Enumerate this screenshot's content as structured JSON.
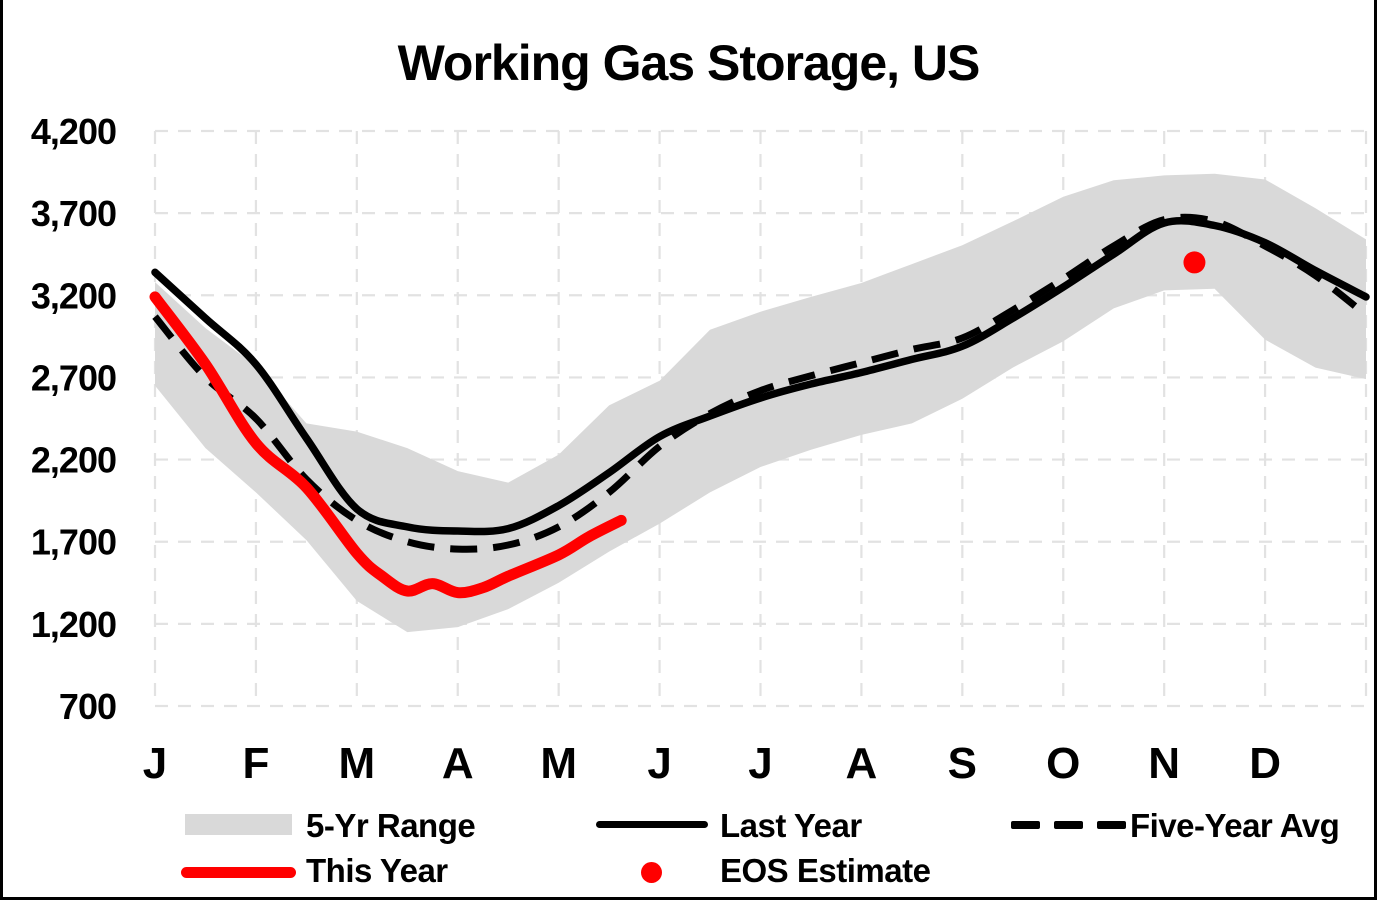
{
  "title": "Working Gas Storage, US",
  "legend": {
    "items": [
      {
        "label": "5-Yr Range",
        "swatch": "gray-band"
      },
      {
        "label": "Last Year",
        "swatch": "black-solid-line"
      },
      {
        "label": "Five-Year Avg",
        "swatch": "black-dashed-line"
      },
      {
        "label": "This Year",
        "swatch": "red-solid-line"
      },
      {
        "label": "EOS Estimate",
        "swatch": "red-dot"
      }
    ]
  },
  "colors": {
    "this_year": "#FF0000",
    "eos_estimate": "#FF0000",
    "last_year": "#000000",
    "five_year_avg": "#000000",
    "range_band": "#D9D9D9",
    "gridline": "#E2E2E2",
    "background": "#FFFFFF"
  },
  "chart_data": {
    "type": "line",
    "title": "Working Gas Storage, US",
    "xlabel": "",
    "ylabel": "",
    "x_categories": [
      "J",
      "F",
      "M",
      "A",
      "M",
      "J",
      "J",
      "A",
      "S",
      "O",
      "N",
      "D"
    ],
    "x_range_months": [
      0,
      12
    ],
    "y_ticks": [
      700,
      1200,
      1700,
      2200,
      2700,
      3200,
      3700,
      4200
    ],
    "y_tick_labels": [
      "700",
      "1,200",
      "1,700",
      "2,200",
      "2,700",
      "3,200",
      "3,700",
      "4,200"
    ],
    "ylim": [
      700,
      4200
    ],
    "grid": "dashed-both-axes",
    "legend_position": "bottom",
    "series": [
      {
        "name": "5-Yr Range",
        "type": "band",
        "months": [
          0,
          0.5,
          1,
          1.5,
          2,
          2.5,
          3,
          3.5,
          4,
          4.5,
          5,
          5.5,
          6,
          6.5,
          7,
          7.5,
          8,
          8.5,
          9,
          9.5,
          10,
          10.5,
          11,
          11.5,
          12
        ],
        "upper": [
          3280,
          3000,
          2770,
          2420,
          2370,
          2270,
          2130,
          2060,
          2230,
          2530,
          2680,
          2990,
          3100,
          3190,
          3275,
          3390,
          3505,
          3650,
          3800,
          3900,
          3930,
          3940,
          3905,
          3730,
          3540
        ],
        "lower": [
          2650,
          2270,
          2000,
          1710,
          1340,
          1150,
          1180,
          1290,
          1450,
          1640,
          1810,
          2000,
          2155,
          2260,
          2350,
          2420,
          2570,
          2760,
          2920,
          3120,
          3230,
          3240,
          2930,
          2760,
          2690
        ]
      },
      {
        "name": "Last Year",
        "type": "line",
        "style": "solid",
        "months": [
          0,
          0.5,
          1,
          1.5,
          2,
          2.5,
          3,
          3.5,
          4,
          4.5,
          5,
          5.5,
          6,
          6.5,
          7,
          7.5,
          8,
          8.5,
          9,
          9.5,
          10,
          10.5,
          11,
          11.5,
          12
        ],
        "values": [
          3340,
          3060,
          2780,
          2330,
          1900,
          1790,
          1765,
          1780,
          1920,
          2120,
          2340,
          2465,
          2575,
          2660,
          2730,
          2810,
          2890,
          3060,
          3250,
          3450,
          3640,
          3625,
          3520,
          3350,
          3190
        ]
      },
      {
        "name": "Five-Year Avg",
        "type": "line",
        "style": "dashed",
        "months": [
          0,
          0.5,
          1,
          1.5,
          2,
          2.5,
          3,
          3.5,
          4,
          4.5,
          5,
          5.5,
          6,
          6.5,
          7,
          7.5,
          8,
          8.5,
          9,
          9.5,
          10,
          10.5,
          11,
          11.5,
          12
        ],
        "values": [
          3070,
          2700,
          2450,
          2080,
          1830,
          1700,
          1655,
          1680,
          1790,
          2000,
          2280,
          2480,
          2620,
          2710,
          2790,
          2870,
          2940,
          3110,
          3300,
          3500,
          3660,
          3650,
          3500,
          3320,
          3080
        ]
      },
      {
        "name": "This Year",
        "type": "line",
        "style": "solid",
        "months": [
          0,
          0.5,
          1,
          1.5,
          2,
          2.25,
          2.5,
          2.75,
          3,
          3.25,
          3.5,
          4,
          4.3,
          4.62
        ],
        "values": [
          3190,
          2780,
          2300,
          2030,
          1630,
          1490,
          1400,
          1445,
          1390,
          1420,
          1490,
          1620,
          1730,
          1830
        ]
      },
      {
        "name": "EOS Estimate",
        "type": "point",
        "month": 10.3,
        "value": 3400
      }
    ]
  }
}
